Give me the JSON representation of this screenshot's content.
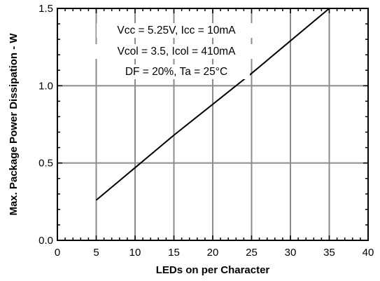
{
  "chart_data": {
    "type": "line",
    "title": "",
    "xlabel": "LEDs on per  Character",
    "ylabel": "Max. Package Power Dissipation - W",
    "xlim": [
      0,
      40
    ],
    "ylim": [
      0.0,
      1.5
    ],
    "x_ticks": [
      "0",
      "5",
      "10",
      "15",
      "20",
      "25",
      "30",
      "35",
      "40"
    ],
    "y_ticks": [
      "0.0",
      "0.5",
      "1.0",
      "1.5"
    ],
    "grid": true,
    "annotations": [
      "Vcc = 5.25V, Icc = 10mA",
      "Vcol = 3.5, Icol = 410mA",
      "DF = 20%, Ta = 25°C"
    ],
    "series": [
      {
        "x": [
          5,
          10,
          15,
          20,
          25,
          30,
          35
        ],
        "values": [
          0.26,
          0.47,
          0.68,
          0.88,
          1.08,
          1.29,
          1.5
        ]
      }
    ]
  }
}
